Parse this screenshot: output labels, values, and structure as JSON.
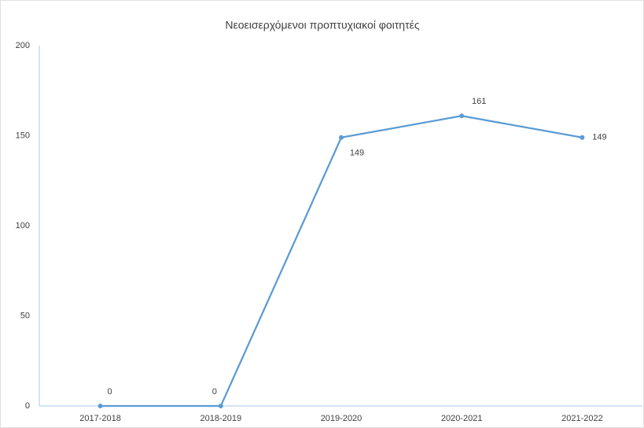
{
  "chart_data": {
    "type": "line",
    "title": "Νεοεισερχόμενοι προπτυχιακοί φοιτητές",
    "categories": [
      "2017-2018",
      "2018-2019",
      "2019-2020",
      "2020-2021",
      "2021-2022"
    ],
    "values": [
      0,
      0,
      149,
      161,
      149
    ],
    "color": "#5b9bd5",
    "ylim": [
      0,
      200
    ],
    "yticks": [
      0,
      50,
      100,
      150,
      200
    ],
    "grid": false
  }
}
